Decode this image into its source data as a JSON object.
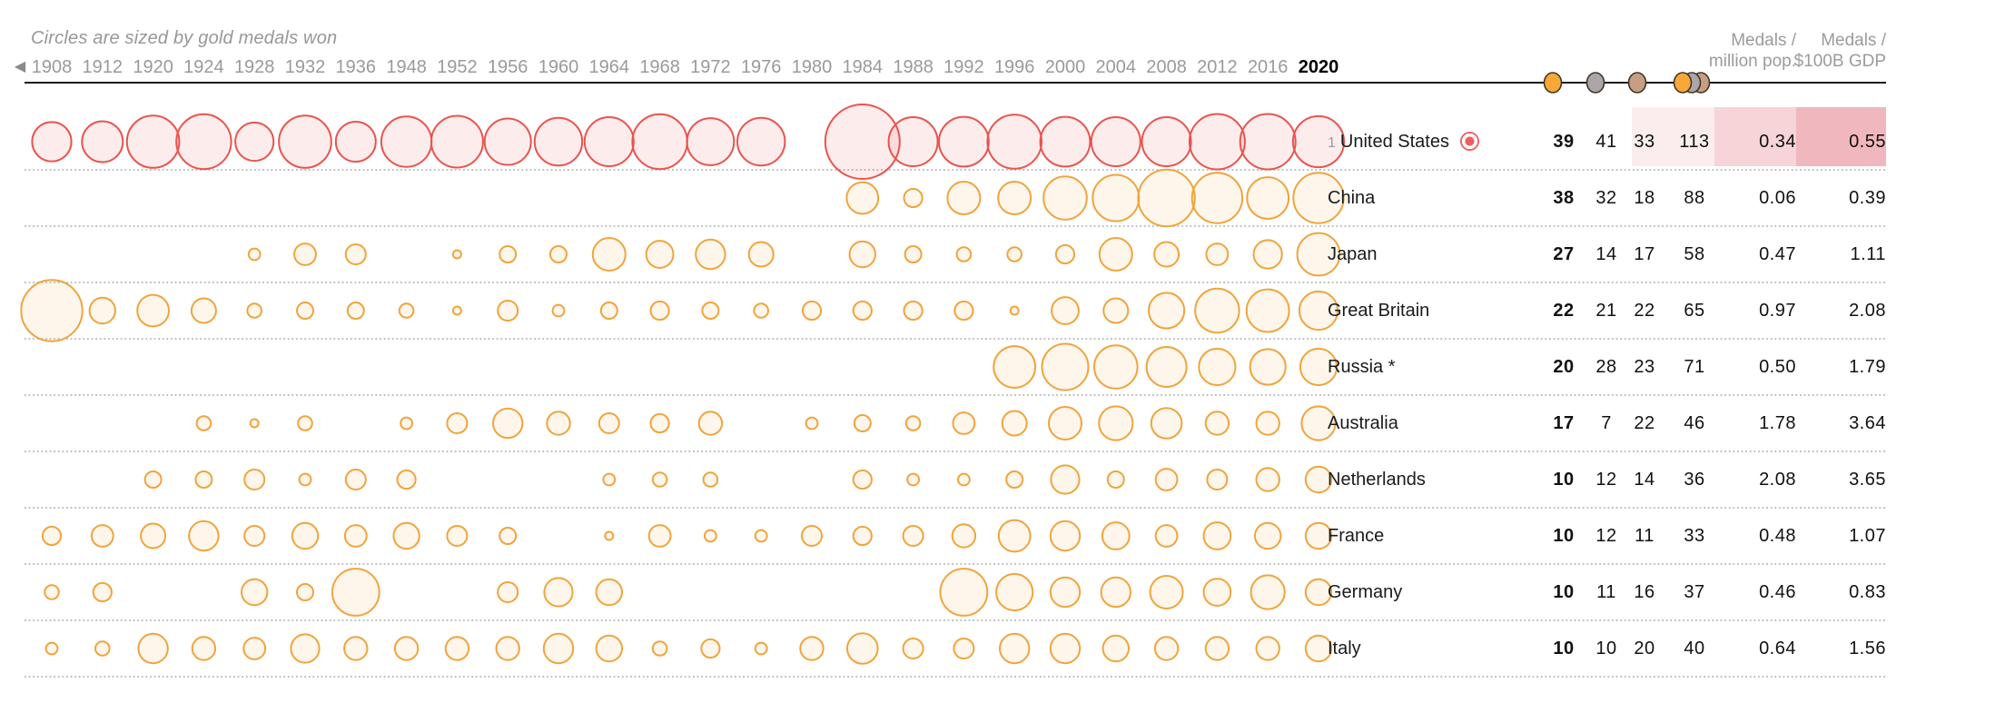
{
  "header": {
    "title": "Circles are sized by gold medals won",
    "back_arrow": "◀",
    "per_pop_header_line1": "Medals /",
    "per_pop_header_line2": "million pop.",
    "per_gdp_header_line1": "Medals /",
    "per_gdp_header_line2": "$100B GDP"
  },
  "colors": {
    "accent_red": "#e9544f",
    "accent_gold": "#f0a43c",
    "year_gray": "#9a9a9a",
    "selected_year_black": "#000000",
    "medal_gold": "#f7a837",
    "medal_silver": "#aca6a8",
    "medal_bronze": "#c79e81",
    "bullseye_red": "#f05f5f",
    "highlight_cells": [
      "#fbeded",
      "#f6d4d8",
      "#f0b8be"
    ],
    "axis_line": "#1a1a1a",
    "dotted_line": "#a8a8a8"
  },
  "legend_icons": [
    "gold-medal-icon",
    "silver-medal-icon",
    "bronze-medal-icon",
    "total-medals-icon"
  ],
  "chart_data": {
    "type": "bubble-timeline",
    "size_meaning": "gold medals won",
    "selected_year": 2020,
    "years": [
      1908,
      1912,
      1920,
      1924,
      1928,
      1932,
      1936,
      1948,
      1952,
      1956,
      1960,
      1964,
      1968,
      1972,
      1976,
      1980,
      1984,
      1988,
      1992,
      1996,
      2000,
      2004,
      2008,
      2012,
      2016,
      2020
    ],
    "table_columns": [
      "gold",
      "silver",
      "bronze",
      "total",
      "per_million_pop",
      "per_100b_gdp"
    ],
    "countries": [
      {
        "rank": 1,
        "name": "United States",
        "highlighted": true,
        "series_color": "red",
        "golds_by_year": {
          "1908": 23,
          "1912": 25,
          "1920": 41,
          "1924": 45,
          "1928": 22,
          "1932": 41,
          "1936": 24,
          "1948": 38,
          "1952": 40,
          "1956": 32,
          "1960": 34,
          "1964": 36,
          "1968": 45,
          "1972": 33,
          "1976": 34,
          "1984": 83,
          "1988": 36,
          "1992": 37,
          "1996": 44,
          "2000": 37,
          "2004": 36,
          "2008": 36,
          "2012": 46,
          "2016": 46,
          "2020": 39
        },
        "table": {
          "gold": "39",
          "silver": "41",
          "bronze": "33",
          "total": "113",
          "per_million_pop": "0.34",
          "per_100b_gdp": "0.55"
        }
      },
      {
        "name": "China",
        "highlighted": false,
        "series_color": "gold",
        "golds_by_year": {
          "1984": 15,
          "1988": 5,
          "1992": 16,
          "1996": 16,
          "2000": 28,
          "2004": 32,
          "2008": 48,
          "2012": 38,
          "2016": 26,
          "2020": 38
        },
        "table": {
          "gold": "38",
          "silver": "32",
          "bronze": "18",
          "total": "88",
          "per_million_pop": "0.06",
          "per_100b_gdp": "0.39"
        }
      },
      {
        "name": "Japan",
        "highlighted": false,
        "series_color": "gold",
        "golds_by_year": {
          "1928": 2,
          "1932": 7,
          "1936": 6,
          "1952": 1,
          "1956": 4,
          "1960": 4,
          "1964": 16,
          "1968": 11,
          "1972": 13,
          "1976": 9,
          "1984": 10,
          "1988": 4,
          "1992": 3,
          "1996": 3,
          "2000": 5,
          "2004": 16,
          "2008": 9,
          "2012": 7,
          "2016": 12,
          "2020": 27
        },
        "table": {
          "gold": "27",
          "silver": "14",
          "bronze": "17",
          "total": "58",
          "per_million_pop": "0.47",
          "per_100b_gdp": "1.11"
        }
      },
      {
        "name": "Great Britain",
        "highlighted": false,
        "series_color": "gold",
        "golds_by_year": {
          "1908": 56,
          "1912": 10,
          "1920": 15,
          "1924": 9,
          "1928": 3,
          "1932": 4,
          "1936": 4,
          "1948": 3,
          "1952": 1,
          "1956": 6,
          "1960": 2,
          "1964": 4,
          "1968": 5,
          "1972": 4,
          "1976": 3,
          "1980": 5,
          "1984": 5,
          "1988": 5,
          "1992": 5,
          "1996": 1,
          "2000": 11,
          "2004": 9,
          "2008": 19,
          "2012": 29,
          "2016": 27,
          "2020": 22
        },
        "table": {
          "gold": "22",
          "silver": "21",
          "bronze": "22",
          "total": "65",
          "per_million_pop": "0.97",
          "per_100b_gdp": "2.08"
        }
      },
      {
        "name": "Russia *",
        "highlighted": false,
        "series_color": "gold",
        "golds_by_year": {
          "1996": 26,
          "2000": 32,
          "2004": 28,
          "2008": 24,
          "2012": 20,
          "2016": 19,
          "2020": 20
        },
        "table": {
          "gold": "20",
          "silver": "28",
          "bronze": "23",
          "total": "71",
          "per_million_pop": "0.50",
          "per_100b_gdp": "1.79"
        }
      },
      {
        "name": "Australia",
        "highlighted": false,
        "series_color": "gold",
        "golds_by_year": {
          "1924": 3,
          "1928": 1,
          "1932": 3,
          "1948": 2,
          "1952": 6,
          "1956": 13,
          "1960": 8,
          "1964": 6,
          "1968": 5,
          "1972": 8,
          "1980": 2,
          "1984": 4,
          "1988": 3,
          "1992": 7,
          "1996": 9,
          "2000": 16,
          "2004": 17,
          "2008": 14,
          "2012": 8,
          "2016": 8,
          "2020": 17
        },
        "table": {
          "gold": "17",
          "silver": "7",
          "bronze": "22",
          "total": "46",
          "per_million_pop": "1.78",
          "per_100b_gdp": "3.64"
        }
      },
      {
        "name": "Netherlands",
        "highlighted": false,
        "series_color": "gold",
        "golds_by_year": {
          "1920": 4,
          "1924": 4,
          "1928": 6,
          "1932": 2,
          "1936": 6,
          "1948": 5,
          "1964": 2,
          "1968": 3,
          "1972": 3,
          "1984": 5,
          "1988": 2,
          "1992": 2,
          "1996": 4,
          "2000": 12,
          "2004": 4,
          "2008": 7,
          "2012": 6,
          "2016": 8,
          "2020": 10
        },
        "table": {
          "gold": "10",
          "silver": "12",
          "bronze": "14",
          "total": "36",
          "per_million_pop": "2.08",
          "per_100b_gdp": "3.65"
        }
      },
      {
        "name": "France",
        "highlighted": false,
        "series_color": "gold",
        "golds_by_year": {
          "1908": 5,
          "1912": 7,
          "1920": 9,
          "1924": 13,
          "1928": 6,
          "1932": 10,
          "1936": 7,
          "1948": 10,
          "1952": 6,
          "1956": 4,
          "1964": 1,
          "1968": 7,
          "1972": 2,
          "1976": 2,
          "1980": 6,
          "1984": 5,
          "1988": 6,
          "1992": 8,
          "1996": 15,
          "2000": 13,
          "2004": 11,
          "2008": 7,
          "2012": 11,
          "2016": 10,
          "2020": 10
        },
        "table": {
          "gold": "10",
          "silver": "12",
          "bronze": "11",
          "total": "33",
          "per_million_pop": "0.48",
          "per_100b_gdp": "1.07"
        }
      },
      {
        "name": "Germany",
        "highlighted": false,
        "series_color": "gold",
        "golds_by_year": {
          "1908": 3,
          "1912": 5,
          "1928": 10,
          "1932": 4,
          "1936": 33,
          "1956": 6,
          "1960": 12,
          "1964": 10,
          "1992": 33,
          "1996": 20,
          "2000": 13,
          "2004": 13,
          "2008": 16,
          "2012": 11,
          "2016": 17,
          "2020": 10
        },
        "table": {
          "gold": "10",
          "silver": "11",
          "bronze": "16",
          "total": "37",
          "per_million_pop": "0.46",
          "per_100b_gdp": "0.83"
        }
      },
      {
        "name": "Italy",
        "highlighted": false,
        "series_color": "gold",
        "golds_by_year": {
          "1908": 2,
          "1912": 3,
          "1920": 13,
          "1924": 8,
          "1928": 7,
          "1932": 12,
          "1936": 8,
          "1948": 8,
          "1952": 8,
          "1956": 8,
          "1960": 13,
          "1964": 10,
          "1968": 3,
          "1972": 5,
          "1976": 2,
          "1980": 8,
          "1984": 14,
          "1988": 6,
          "1992": 6,
          "1996": 13,
          "2000": 13,
          "2004": 10,
          "2008": 8,
          "2012": 8,
          "2016": 8,
          "2020": 10
        },
        "table": {
          "gold": "10",
          "silver": "10",
          "bronze": "20",
          "total": "40",
          "per_million_pop": "0.64",
          "per_100b_gdp": "1.56"
        }
      }
    ]
  }
}
